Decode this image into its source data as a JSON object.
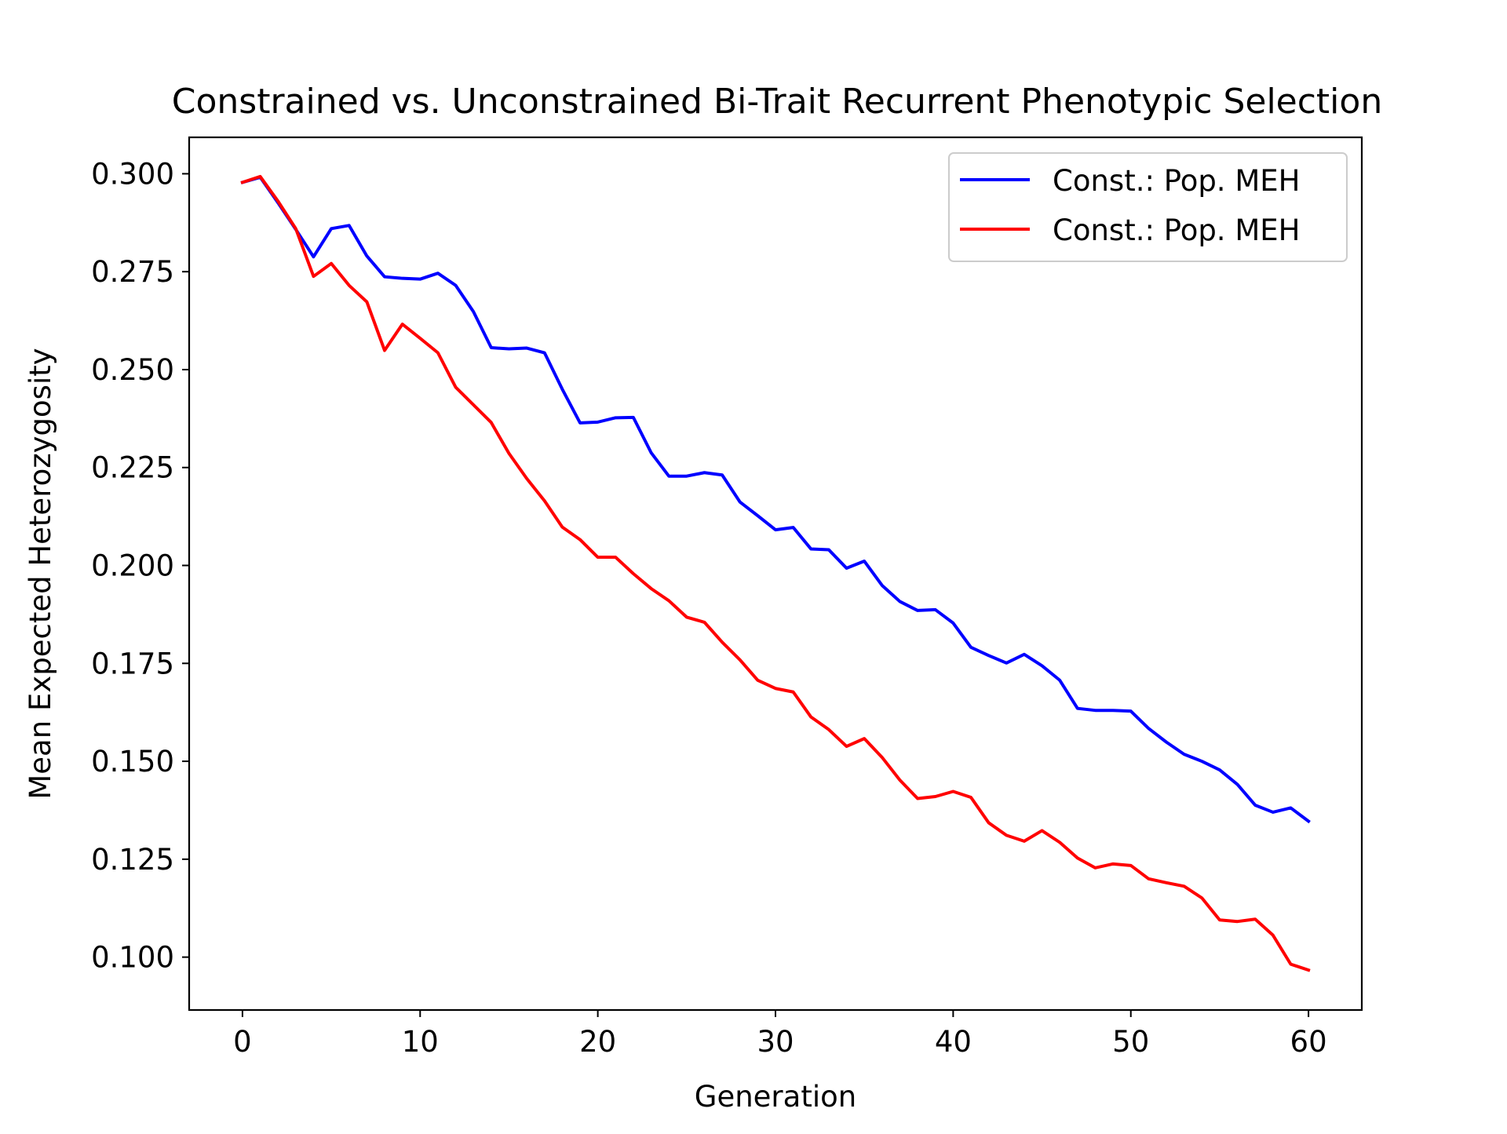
{
  "chart_data": {
    "type": "line",
    "title": "Constrained vs. Unconstrained Bi-Trait Recurrent Phenotypic Selection",
    "xlabel": "Generation",
    "ylabel": "Mean Expected Heterozygosity",
    "xlim": [
      -3,
      63
    ],
    "ylim": [
      0.0865,
      0.3093
    ],
    "xticks": [
      0,
      10,
      20,
      30,
      40,
      50,
      60
    ],
    "xtick_labels": [
      "0",
      "10",
      "20",
      "30",
      "40",
      "50",
      "60"
    ],
    "yticks": [
      0.1,
      0.125,
      0.15,
      0.175,
      0.2,
      0.225,
      0.25,
      0.275,
      0.3
    ],
    "ytick_labels": [
      "0.100",
      "0.125",
      "0.150",
      "0.175",
      "0.200",
      "0.225",
      "0.250",
      "0.275",
      "0.300"
    ],
    "grid": false,
    "legend_position": "top-right",
    "x": [
      0,
      1,
      2,
      3,
      4,
      5,
      6,
      7,
      8,
      9,
      10,
      11,
      12,
      13,
      14,
      15,
      16,
      17,
      18,
      19,
      20,
      21,
      22,
      23,
      24,
      25,
      26,
      27,
      28,
      29,
      30,
      31,
      32,
      33,
      34,
      35,
      36,
      37,
      38,
      39,
      40,
      41,
      42,
      43,
      44,
      45,
      46,
      47,
      48,
      49,
      50,
      51,
      52,
      53,
      54,
      55,
      56,
      57,
      58,
      59,
      60
    ],
    "series": [
      {
        "name": "Const.: Pop. MEH",
        "color": "#0000ff",
        "values": [
          0.2978,
          0.2991,
          0.2926,
          0.2858,
          0.2788,
          0.286,
          0.2868,
          0.279,
          0.2737,
          0.2733,
          0.2731,
          0.2746,
          0.2715,
          0.2648,
          0.2556,
          0.2553,
          0.2555,
          0.2543,
          0.245,
          0.2364,
          0.2366,
          0.2377,
          0.2378,
          0.2288,
          0.2228,
          0.2228,
          0.2237,
          0.2231,
          0.2162,
          0.2127,
          0.2091,
          0.2097,
          0.2042,
          0.204,
          0.1993,
          0.2011,
          0.1949,
          0.1908,
          0.1885,
          0.1887,
          0.1853,
          0.1791,
          0.177,
          0.1751,
          0.1773,
          0.1744,
          0.1707,
          0.1635,
          0.163,
          0.163,
          0.1628,
          0.1584,
          0.1549,
          0.1518,
          0.15,
          0.1478,
          0.1441,
          0.1388,
          0.137,
          0.1381,
          0.1347
        ]
      },
      {
        "name": "Const.: Pop. MEH",
        "color": "#ff0000",
        "values": [
          0.2978,
          0.2993,
          0.293,
          0.286,
          0.2738,
          0.2771,
          0.2715,
          0.2673,
          0.2549,
          0.2616,
          0.258,
          0.2543,
          0.2455,
          0.241,
          0.2365,
          0.2286,
          0.2222,
          0.2165,
          0.2098,
          0.2066,
          0.2021,
          0.2021,
          0.1979,
          0.1941,
          0.191,
          0.1868,
          0.1855,
          0.1804,
          0.1759,
          0.1707,
          0.1686,
          0.1677,
          0.1613,
          0.1581,
          0.1538,
          0.1558,
          0.151,
          0.1452,
          0.1405,
          0.141,
          0.1423,
          0.1408,
          0.1343,
          0.1311,
          0.1296,
          0.1323,
          0.1293,
          0.1253,
          0.1228,
          0.1238,
          0.1234,
          0.12,
          0.119,
          0.1181,
          0.1151,
          0.1095,
          0.1091,
          0.1097,
          0.1056,
          0.0982,
          0.0967
        ]
      }
    ]
  }
}
